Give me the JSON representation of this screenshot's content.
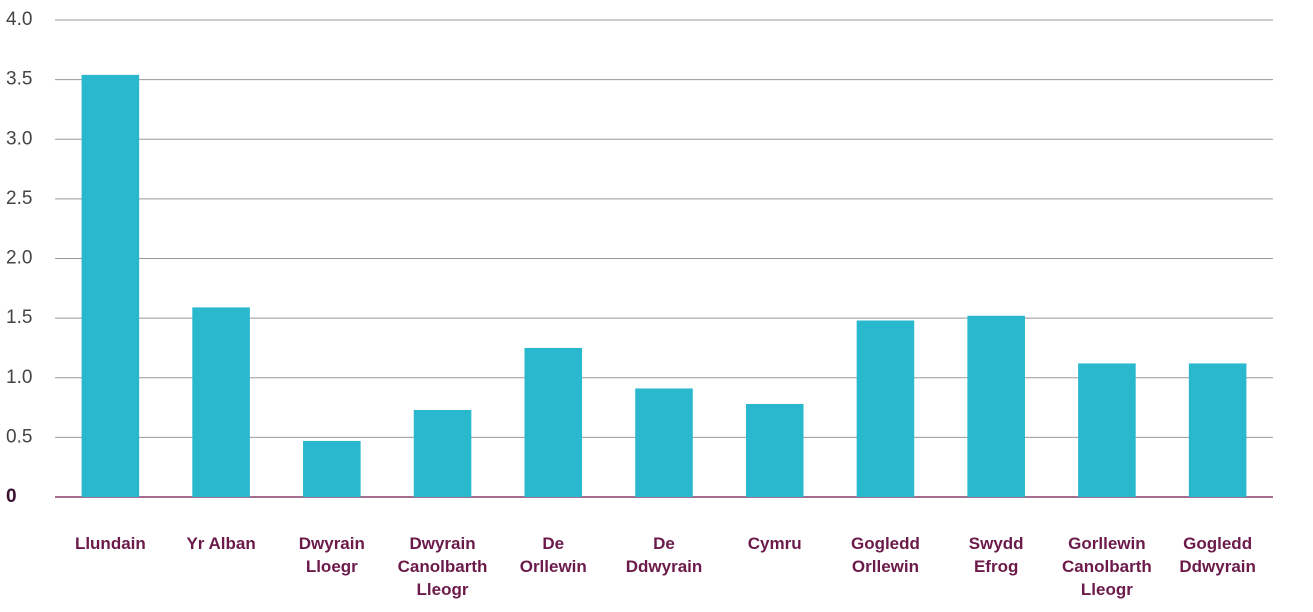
{
  "chart_data": {
    "type": "bar",
    "categories": [
      "Llundain",
      "Yr Alban",
      "Dwyrain\nLloegr",
      "Dwyrain\nCanolbarth\nLleogr",
      "De\nOrllewin",
      "De\nDdwyrain",
      "Cymru",
      "Gogledd\nOrllewin",
      "Swydd\nEfrog",
      "Gorllewin\nCanolbarth\nLleogr",
      "Gogledd\nDdwyrain"
    ],
    "values": [
      3.54,
      1.59,
      0.47,
      0.73,
      1.25,
      0.91,
      0.78,
      1.48,
      1.52,
      1.12,
      1.12
    ],
    "color": "#29b8ce",
    "ylim": [
      0,
      4
    ],
    "yticks": [
      0,
      0.5,
      {
        "value": 1,
        "label": "1.0"
      },
      1.5,
      {
        "value": 2,
        "label": "2.0"
      },
      2.5,
      {
        "value": 3,
        "label": "3.0"
      },
      3.5,
      {
        "value": 4,
        "label": "4.0"
      }
    ],
    "grid": true
  }
}
